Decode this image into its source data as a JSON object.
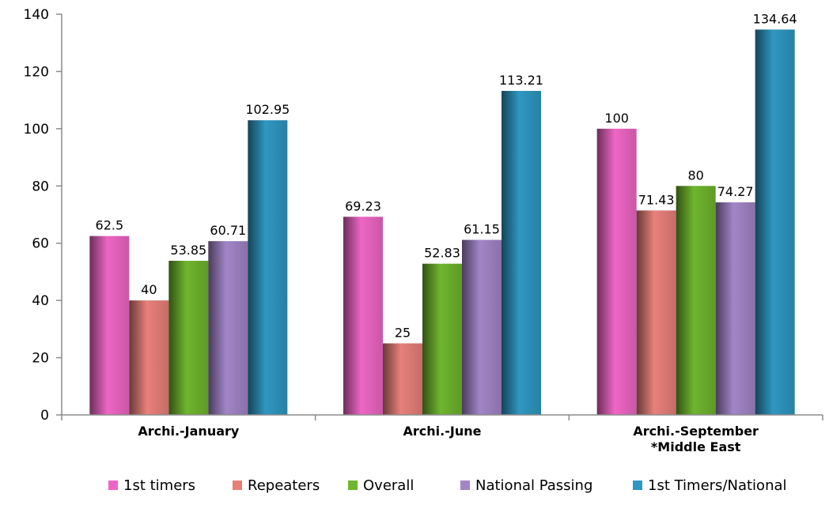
{
  "chart_data": {
    "type": "bar",
    "title": "",
    "xlabel": "",
    "ylabel": "",
    "ylim": [
      0,
      140
    ],
    "yticks": [
      0,
      20,
      40,
      60,
      80,
      100,
      120,
      140
    ],
    "grid": false,
    "legend_position": "bottom",
    "categories": [
      [
        "Archi.-January"
      ],
      [
        "Archi.-June"
      ],
      [
        "Archi.-September",
        "*Middle East"
      ]
    ],
    "series": [
      {
        "name": "1st timers",
        "color": "#ee66c4",
        "values": [
          62.5,
          69.23,
          100
        ],
        "labels": [
          "62.5",
          "69.23",
          "100"
        ]
      },
      {
        "name": "Repeaters",
        "color": "#e8807a",
        "values": [
          40,
          25,
          71.43
        ],
        "labels": [
          "40",
          "25",
          "71.43"
        ]
      },
      {
        "name": "Overall",
        "color": "#6fb52e",
        "values": [
          53.85,
          52.83,
          80
        ],
        "labels": [
          "53.85",
          "52.83",
          "80"
        ]
      },
      {
        "name": "National Passing",
        "color": "#a285c7",
        "values": [
          60.71,
          61.15,
          74.27
        ],
        "labels": [
          "60.71",
          "61.15",
          "74.27"
        ]
      },
      {
        "name": "1st Timers/National",
        "color": "#2f97c1",
        "values": [
          102.95,
          113.21,
          134.64
        ],
        "labels": [
          "102.95",
          "113.21",
          "134.64"
        ]
      }
    ]
  }
}
